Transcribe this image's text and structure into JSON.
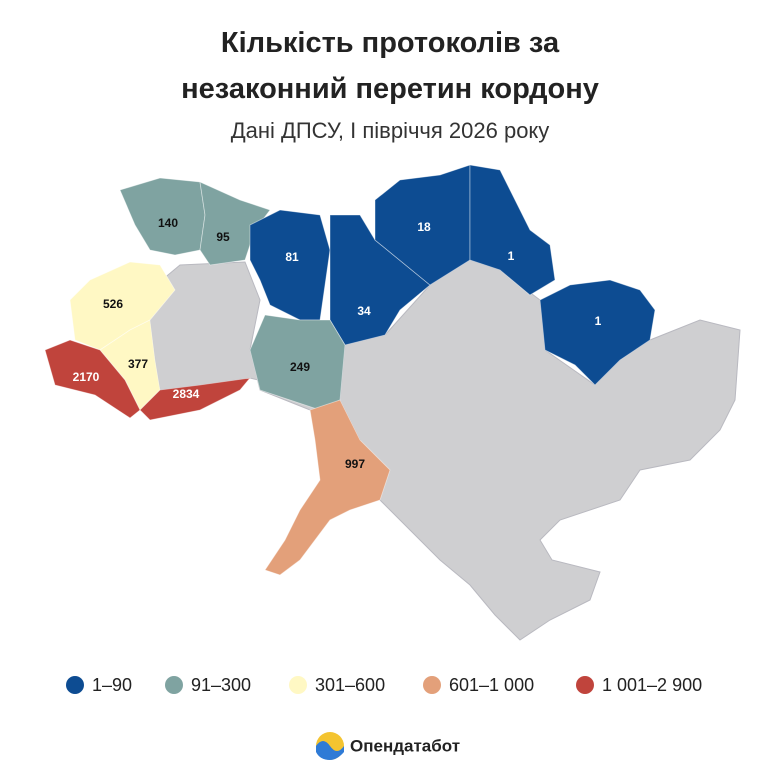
{
  "title_lines": [
    "Кількість протоколів за",
    "незаконний перетин кордону"
  ],
  "subtitle": "Дані ДПСУ, І півріччя 2026 року",
  "regions": [
    {
      "value": 140,
      "color": "#7fa3a1"
    },
    {
      "value": 95,
      "color": "#7fa3a1"
    },
    {
      "value": 526,
      "color": "#fff8c4"
    },
    {
      "value": 377,
      "color": "#fff8c4"
    },
    {
      "value": 2170,
      "color": "#c0443c"
    },
    {
      "value": 2834,
      "color": "#c0443c"
    },
    {
      "value": 81,
      "color": "#0d4c92"
    },
    {
      "value": 34,
      "color": "#0d4c92"
    },
    {
      "value": 18,
      "color": "#0d4c92"
    },
    {
      "value": 1,
      "color": "#0d4c92"
    },
    {
      "value": 1,
      "color": "#0d4c92"
    },
    {
      "value": 249,
      "color": "#7fa3a1"
    },
    {
      "value": 997,
      "color": "#e3a07a"
    }
  ],
  "legend": [
    {
      "label": "1–90",
      "color": "#0d4c92"
    },
    {
      "label": "91–300",
      "color": "#7fa3a1"
    },
    {
      "label": "301–600",
      "color": "#fff8c4"
    },
    {
      "label": "601–1 000",
      "color": "#e3a07a"
    },
    {
      "label": "1 001–2 900",
      "color": "#c0443c"
    }
  ],
  "brand": "Опендатабот"
}
